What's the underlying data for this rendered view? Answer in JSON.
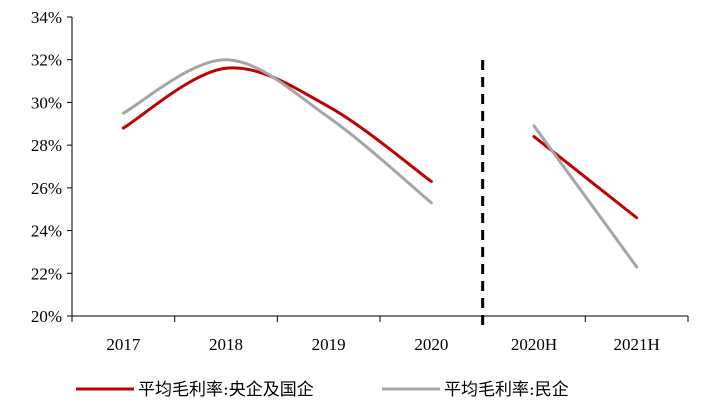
{
  "chart_data": {
    "type": "line",
    "categories": [
      "2017",
      "2018",
      "2019",
      "2020",
      "2020H",
      "2021H"
    ],
    "ylim": [
      20,
      34
    ],
    "yticks": [
      20,
      22,
      24,
      26,
      28,
      30,
      32,
      34
    ],
    "ytick_format": "{v}%",
    "grid": false,
    "divider_after_category": "2020",
    "segments": [
      [
        "2017",
        "2018",
        "2019",
        "2020"
      ],
      [
        "2020H",
        "2021H"
      ]
    ],
    "series": [
      {
        "name": "平均毛利率:央企及国企",
        "color": "#c00000",
        "values": [
          28.8,
          31.6,
          29.8,
          26.3,
          28.4,
          24.6
        ]
      },
      {
        "name": "平均毛利率:民企",
        "color": "#a6a6a6",
        "values": [
          29.5,
          32.0,
          29.3,
          25.3,
          28.9,
          22.3
        ]
      }
    ],
    "legend_position": "bottom"
  }
}
